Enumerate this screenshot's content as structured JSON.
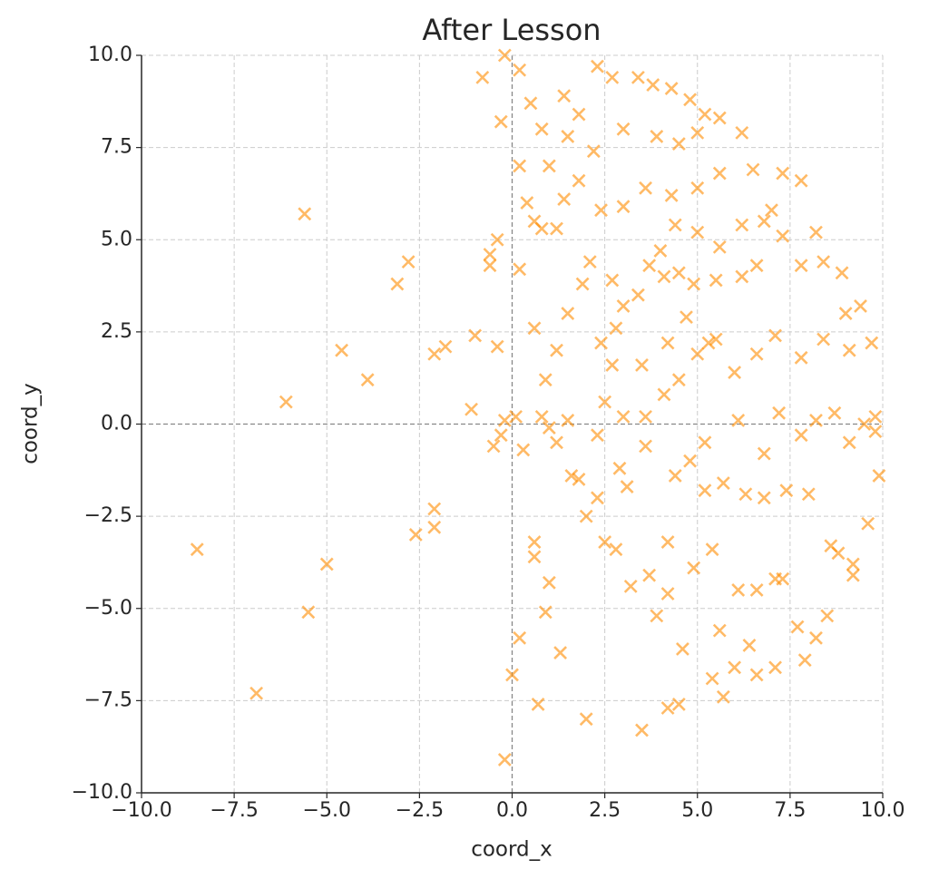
{
  "chart_data": {
    "type": "scatter",
    "title": "After Lesson",
    "x_label": "coord_x",
    "y_label": "coord_y",
    "color": "#ff8c00",
    "grid": true,
    "xlim": [
      -10,
      10
    ],
    "ylim": [
      -10,
      10
    ],
    "xticks": [
      {
        "value": -10,
        "label": "−10.0"
      },
      {
        "value": -7.5,
        "label": "−7.5"
      },
      {
        "value": -5,
        "label": "−5.0"
      },
      {
        "value": -2.5,
        "label": "−2.5"
      },
      {
        "value": 0,
        "label": "0.0"
      },
      {
        "value": 2.5,
        "label": "2.5"
      },
      {
        "value": 5,
        "label": "5.0"
      },
      {
        "value": 7.5,
        "label": "7.5"
      },
      {
        "value": 10,
        "label": "10.0"
      }
    ],
    "yticks": [
      {
        "value": -10,
        "label": "−10.0"
      },
      {
        "value": -7.5,
        "label": "−7.5"
      },
      {
        "value": -5,
        "label": "−5.0"
      },
      {
        "value": -2.5,
        "label": "−2.5"
      },
      {
        "value": 0,
        "label": "0.0"
      },
      {
        "value": 2.5,
        "label": "2.5"
      },
      {
        "value": 5,
        "label": "5.0"
      },
      {
        "value": 7.5,
        "label": "7.5"
      },
      {
        "value": 10,
        "label": "10.0"
      }
    ],
    "x": [
      -8.5,
      -6.9,
      -6.1,
      -5.6,
      -5.5,
      -5.0,
      -4.6,
      -3.9,
      -3.1,
      -2.8,
      -2.6,
      -2.1,
      -2.1,
      -2.1,
      -1.8,
      -1.1,
      -1.0,
      -0.8,
      -0.6,
      -0.6,
      -0.4,
      -0.4,
      -0.5,
      -0.3,
      -0.2,
      -0.2,
      0.0,
      0.2,
      0.3,
      0.6,
      0.6,
      0.7,
      0.9,
      1.0,
      1.3,
      2.0,
      3.5,
      4.2,
      4.5,
      0.1,
      -0.3,
      -0.2,
      0.4,
      0.6,
      0.2,
      0.8,
      0.2,
      0.5,
      1.4,
      1.8,
      2.3,
      2.7,
      3.4,
      3.8,
      4.3,
      4.8,
      5.0,
      5.2,
      5.6,
      6.2,
      0.2,
      0.6,
      0.9,
      1.2,
      1.5,
      1.9,
      2.1,
      2.4,
      2.7,
      2.3,
      2.0,
      2.3,
      2.5,
      2.8,
      3.2,
      3.7,
      3.9,
      4.2,
      4.6,
      4.9,
      5.4,
      5.6,
      5.7,
      6.0,
      6.4,
      6.6,
      7.1,
      7.3,
      7.7,
      7.9,
      8.2,
      8.5,
      8.8,
      9.2,
      9.6,
      9.9,
      9.8,
      9.8,
      9.5,
      9.1,
      8.7,
      8.2,
      7.8,
      7.2,
      6.8,
      6.3,
      6.8,
      7.4,
      5.2,
      4.8,
      4.4,
      3.6,
      3.1,
      3.6,
      4.1,
      4.5,
      5.0,
      5.5,
      6.0,
      6.6,
      7.1,
      7.8,
      8.4,
      9.1,
      9.7,
      9.4,
      8.9,
      8.4,
      7.8,
      7.3,
      6.8,
      7.0,
      6.2,
      5.6,
      5.0,
      4.4,
      4.0,
      3.7,
      3.4,
      3.0,
      2.7,
      2.4,
      3.0,
      3.6,
      4.3,
      5.0,
      5.6,
      6.5,
      7.3,
      7.8,
      8.2,
      9.0,
      4.5,
      3.9,
      3.0,
      2.2,
      1.5,
      1.0,
      1.8,
      1.4,
      1.2,
      0.8,
      2.5,
      1.6,
      1.8,
      1.5,
      0.8,
      1.2,
      1.0,
      4.1,
      4.5,
      4.9,
      5.5,
      6.2,
      6.6,
      4.7,
      5.3,
      6.1,
      5.7,
      5.2,
      4.2,
      5.4,
      6.1,
      6.6,
      7.1,
      8.0,
      8.6,
      9.2,
      3.5,
      2.8,
      4.2,
      2.9,
      3.0
    ],
    "values": [
      -3.4,
      -7.3,
      0.6,
      5.7,
      -5.1,
      -3.8,
      2.0,
      1.2,
      3.8,
      4.4,
      -3.0,
      -2.3,
      -2.8,
      1.9,
      2.1,
      0.4,
      2.4,
      9.4,
      4.6,
      4.3,
      5.0,
      2.1,
      -0.6,
      8.2,
      10.0,
      -9.1,
      -6.8,
      -5.8,
      -0.7,
      -3.2,
      -3.6,
      -7.6,
      -5.1,
      -4.3,
      -6.2,
      -8.0,
      -8.3,
      -7.7,
      -7.6,
      0.2,
      -0.3,
      0.1,
      6.0,
      5.5,
      7.0,
      8.0,
      9.6,
      8.7,
      8.9,
      8.4,
      9.7,
      9.4,
      9.4,
      9.2,
      9.1,
      8.8,
      7.9,
      8.4,
      8.3,
      7.9,
      4.2,
      2.6,
      1.2,
      2.0,
      3.0,
      3.8,
      4.4,
      2.2,
      1.6,
      -0.3,
      -2.5,
      -2.0,
      -3.2,
      -3.4,
      -4.4,
      -4.1,
      -5.2,
      -4.6,
      -6.1,
      -3.9,
      -6.9,
      -5.6,
      -7.4,
      -6.6,
      -6.0,
      -6.8,
      -6.6,
      -4.2,
      -5.5,
      -6.4,
      -5.8,
      -5.2,
      -3.5,
      -4.1,
      -2.7,
      -1.4,
      -0.2,
      0.2,
      0.0,
      -0.5,
      0.3,
      0.1,
      -0.3,
      0.3,
      -0.8,
      -1.9,
      -2.0,
      -1.8,
      -0.5,
      -1.0,
      -1.4,
      -0.6,
      -1.7,
      0.2,
      0.8,
      1.2,
      1.9,
      2.3,
      1.4,
      1.9,
      2.4,
      1.8,
      2.3,
      2.0,
      2.2,
      3.2,
      4.1,
      4.4,
      4.3,
      5.1,
      5.5,
      5.8,
      5.4,
      4.8,
      5.2,
      5.4,
      4.7,
      4.3,
      3.5,
      3.2,
      3.9,
      5.8,
      5.9,
      6.4,
      6.2,
      6.4,
      6.8,
      6.9,
      6.8,
      6.6,
      5.2,
      3.0,
      7.6,
      7.8,
      8.0,
      7.4,
      7.8,
      7.0,
      6.6,
      6.1,
      5.3,
      5.3,
      0.6,
      -1.4,
      -1.5,
      0.1,
      0.2,
      -0.5,
      -0.1,
      4.0,
      4.1,
      3.8,
      3.9,
      4.0,
      4.3,
      2.9,
      2.2,
      0.1,
      -1.6,
      -1.8,
      -3.2,
      -3.4,
      -4.5,
      -4.5,
      -4.2,
      -1.9,
      -3.3,
      -3.8,
      1.6,
      2.6,
      2.2,
      -1.2,
      0.2
    ]
  }
}
